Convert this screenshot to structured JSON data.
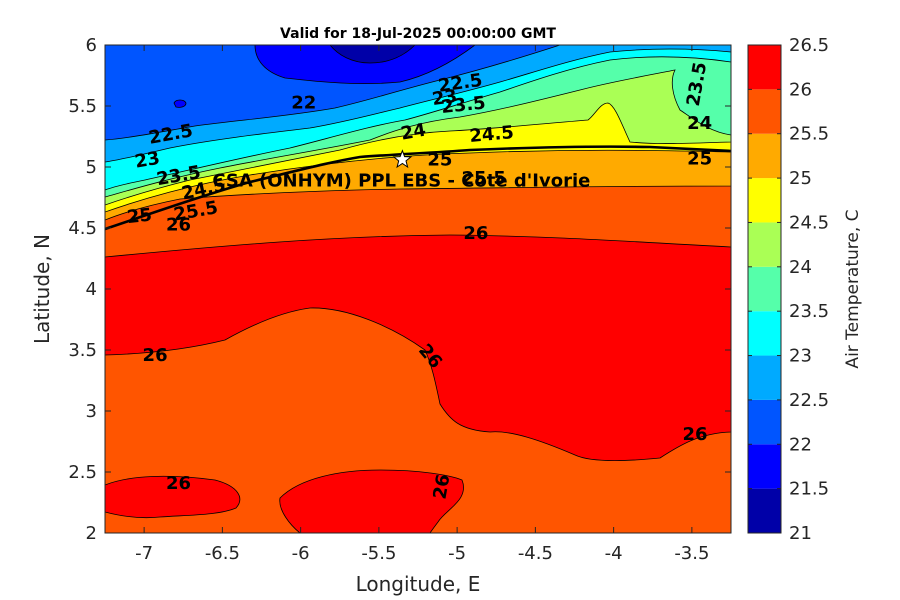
{
  "chart_data": {
    "type": "contour",
    "title": "Valid for 18-Jul-2025 00:00:00 GMT",
    "xlabel": "Longitude, E",
    "ylabel": "Latitude, N",
    "xlim": [
      -7.25,
      -3.25
    ],
    "ylim": [
      2,
      6
    ],
    "x_ticks": [
      -7,
      -6.5,
      -6,
      -5.5,
      -5,
      -4.5,
      -4,
      -3.5
    ],
    "x_tick_labels": [
      "-7",
      "-6.5",
      "-6",
      "-5.5",
      "-5",
      "-4.5",
      "-4",
      "-3.5"
    ],
    "y_ticks": [
      2,
      2.5,
      3,
      3.5,
      4,
      4.5,
      5,
      5.5,
      6
    ],
    "y_tick_labels": [
      "2",
      "2.5",
      "3",
      "3.5",
      "4",
      "4.5",
      "5",
      "5.5",
      "6"
    ],
    "colorbar": {
      "label": "Air Temperature, C",
      "range": [
        21,
        26.5
      ],
      "levels": [
        21,
        21.5,
        22,
        22.5,
        23,
        23.5,
        24,
        24.5,
        25,
        25.5,
        26,
        26.5
      ],
      "tick_labels": [
        "21",
        "21.5",
        "22",
        "22.5",
        "23",
        "23.5",
        "24",
        "24.5",
        "25",
        "25.5",
        "26",
        "26.5"
      ],
      "colors": [
        "#0000A8",
        "#0000FF",
        "#0055FF",
        "#00AAFF",
        "#00FFFF",
        "#55FFAA",
        "#AAFF55",
        "#FFFF00",
        "#FFAA00",
        "#FF5500",
        "#FF0000",
        "#AA0000"
      ]
    },
    "site": {
      "name": "CSA (ONHYM) PPL EBS - Cote d'Ivorie",
      "lon": -5.35,
      "lat": 5.06
    },
    "contour_labels": [
      {
        "text": "22",
        "lon": -5.98,
        "lat": 5.53,
        "rotate": 0
      },
      {
        "text": "22.5",
        "lon": -4.98,
        "lat": 5.69,
        "rotate": -8
      },
      {
        "text": "23",
        "lon": -5.08,
        "lat": 5.57,
        "rotate": -8
      },
      {
        "text": "23.5",
        "lon": -4.96,
        "lat": 5.51,
        "rotate": -6
      },
      {
        "text": "23.5",
        "lon": -3.47,
        "lat": 5.68,
        "rotate": -80
      },
      {
        "text": "24",
        "lon": -5.28,
        "lat": 5.29,
        "rotate": -10
      },
      {
        "text": "24.5",
        "lon": -4.78,
        "lat": 5.27,
        "rotate": -5
      },
      {
        "text": "24",
        "lon": -3.45,
        "lat": 5.36,
        "rotate": 0
      },
      {
        "text": "25",
        "lon": -5.11,
        "lat": 5.06,
        "rotate": 0
      },
      {
        "text": "25",
        "lon": -3.45,
        "lat": 5.07,
        "rotate": 0
      },
      {
        "text": "22.5",
        "lon": -6.83,
        "lat": 5.27,
        "rotate": -10
      },
      {
        "text": "23",
        "lon": -6.98,
        "lat": 5.06,
        "rotate": -10
      },
      {
        "text": "23.5",
        "lon": -6.78,
        "lat": 4.93,
        "rotate": -10
      },
      {
        "text": "24.5",
        "lon": -6.62,
        "lat": 4.82,
        "rotate": -12
      },
      {
        "text": "25",
        "lon": -7.03,
        "lat": 4.6,
        "rotate": -6
      },
      {
        "text": "25.5",
        "lon": -6.67,
        "lat": 4.64,
        "rotate": -10
      },
      {
        "text": "26",
        "lon": -6.78,
        "lat": 4.53,
        "rotate": 0
      },
      {
        "text": "25.5",
        "lon": -4.83,
        "lat": 4.91,
        "rotate": 0
      },
      {
        "text": "26",
        "lon": -4.88,
        "lat": 4.46,
        "rotate": 0
      },
      {
        "text": "26",
        "lon": -6.93,
        "lat": 3.46,
        "rotate": 0
      },
      {
        "text": "26",
        "lon": -5.17,
        "lat": 3.45,
        "rotate": 50
      },
      {
        "text": "26",
        "lon": -3.48,
        "lat": 2.81,
        "rotate": 0
      },
      {
        "text": "26",
        "lon": -6.78,
        "lat": 2.41,
        "rotate": 0
      },
      {
        "text": "26",
        "lon": -5.1,
        "lat": 2.38,
        "rotate": -80
      }
    ]
  }
}
